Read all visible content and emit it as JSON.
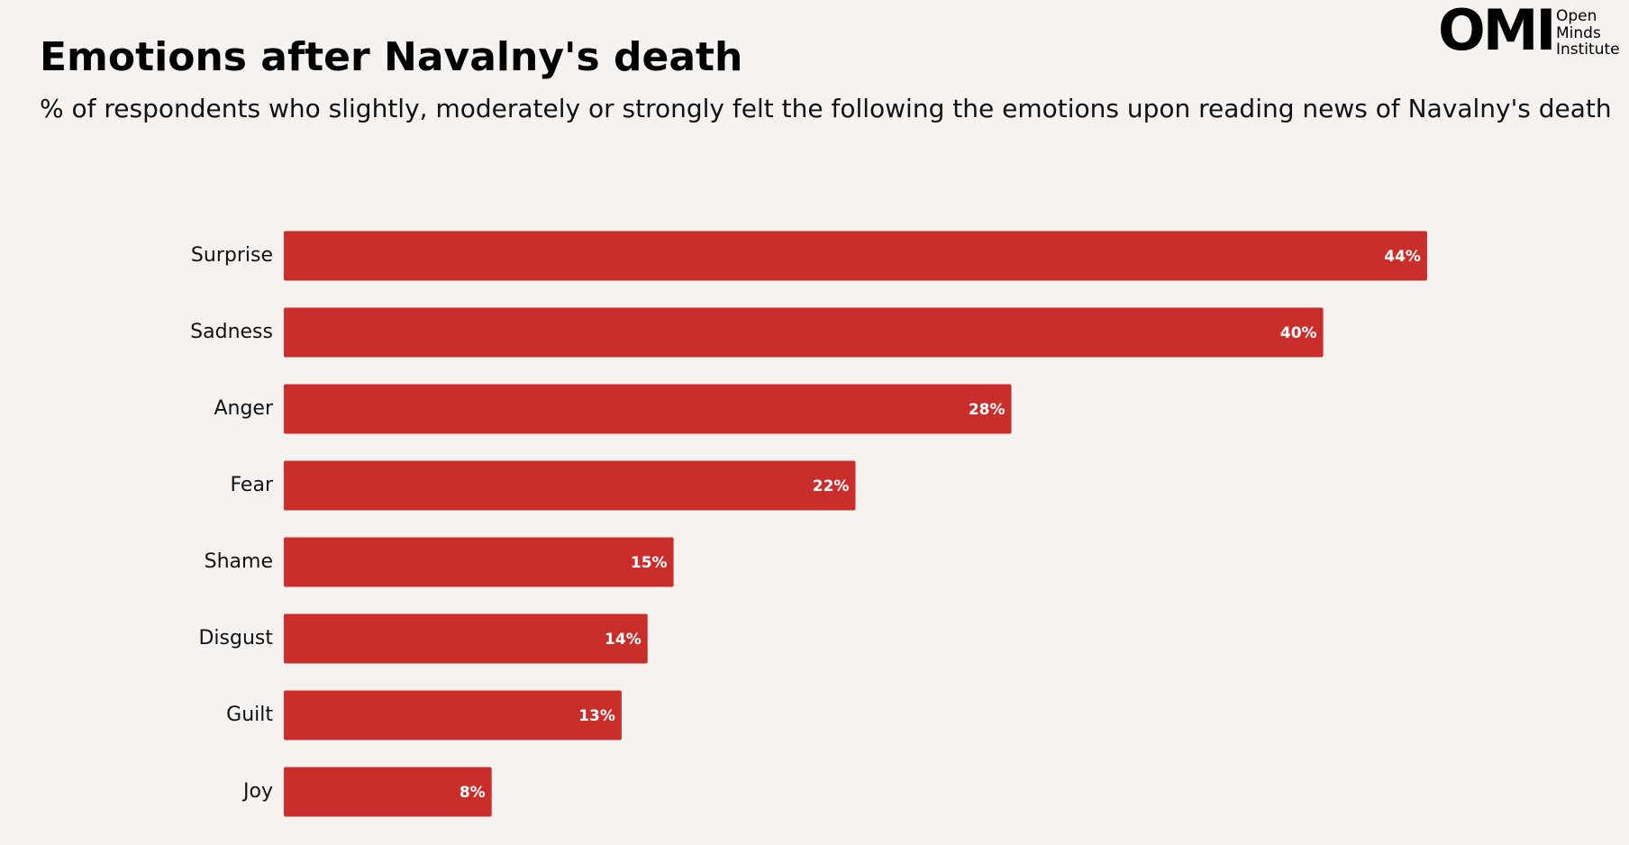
{
  "chart_data": {
    "type": "bar",
    "orientation": "horizontal",
    "title": "Emotions after Navalny's death",
    "subtitle": "% of respondents who slightly, moderately or strongly felt the following the emotions upon reading news of Navalny's death",
    "categories": [
      "Surprise",
      "Sadness",
      "Anger",
      "Fear",
      "Shame",
      "Disgust",
      "Guilt",
      "Joy"
    ],
    "values": [
      44,
      40,
      28,
      22,
      15,
      14,
      13,
      8
    ],
    "value_labels": [
      "44%",
      "40%",
      "28%",
      "22%",
      "15%",
      "14%",
      "13%",
      "8%"
    ],
    "color": "#c92e2b",
    "xlim": [
      0,
      50
    ]
  },
  "logo": {
    "mark": "OMI",
    "name": [
      "Open",
      "Minds",
      "Institute"
    ]
  }
}
